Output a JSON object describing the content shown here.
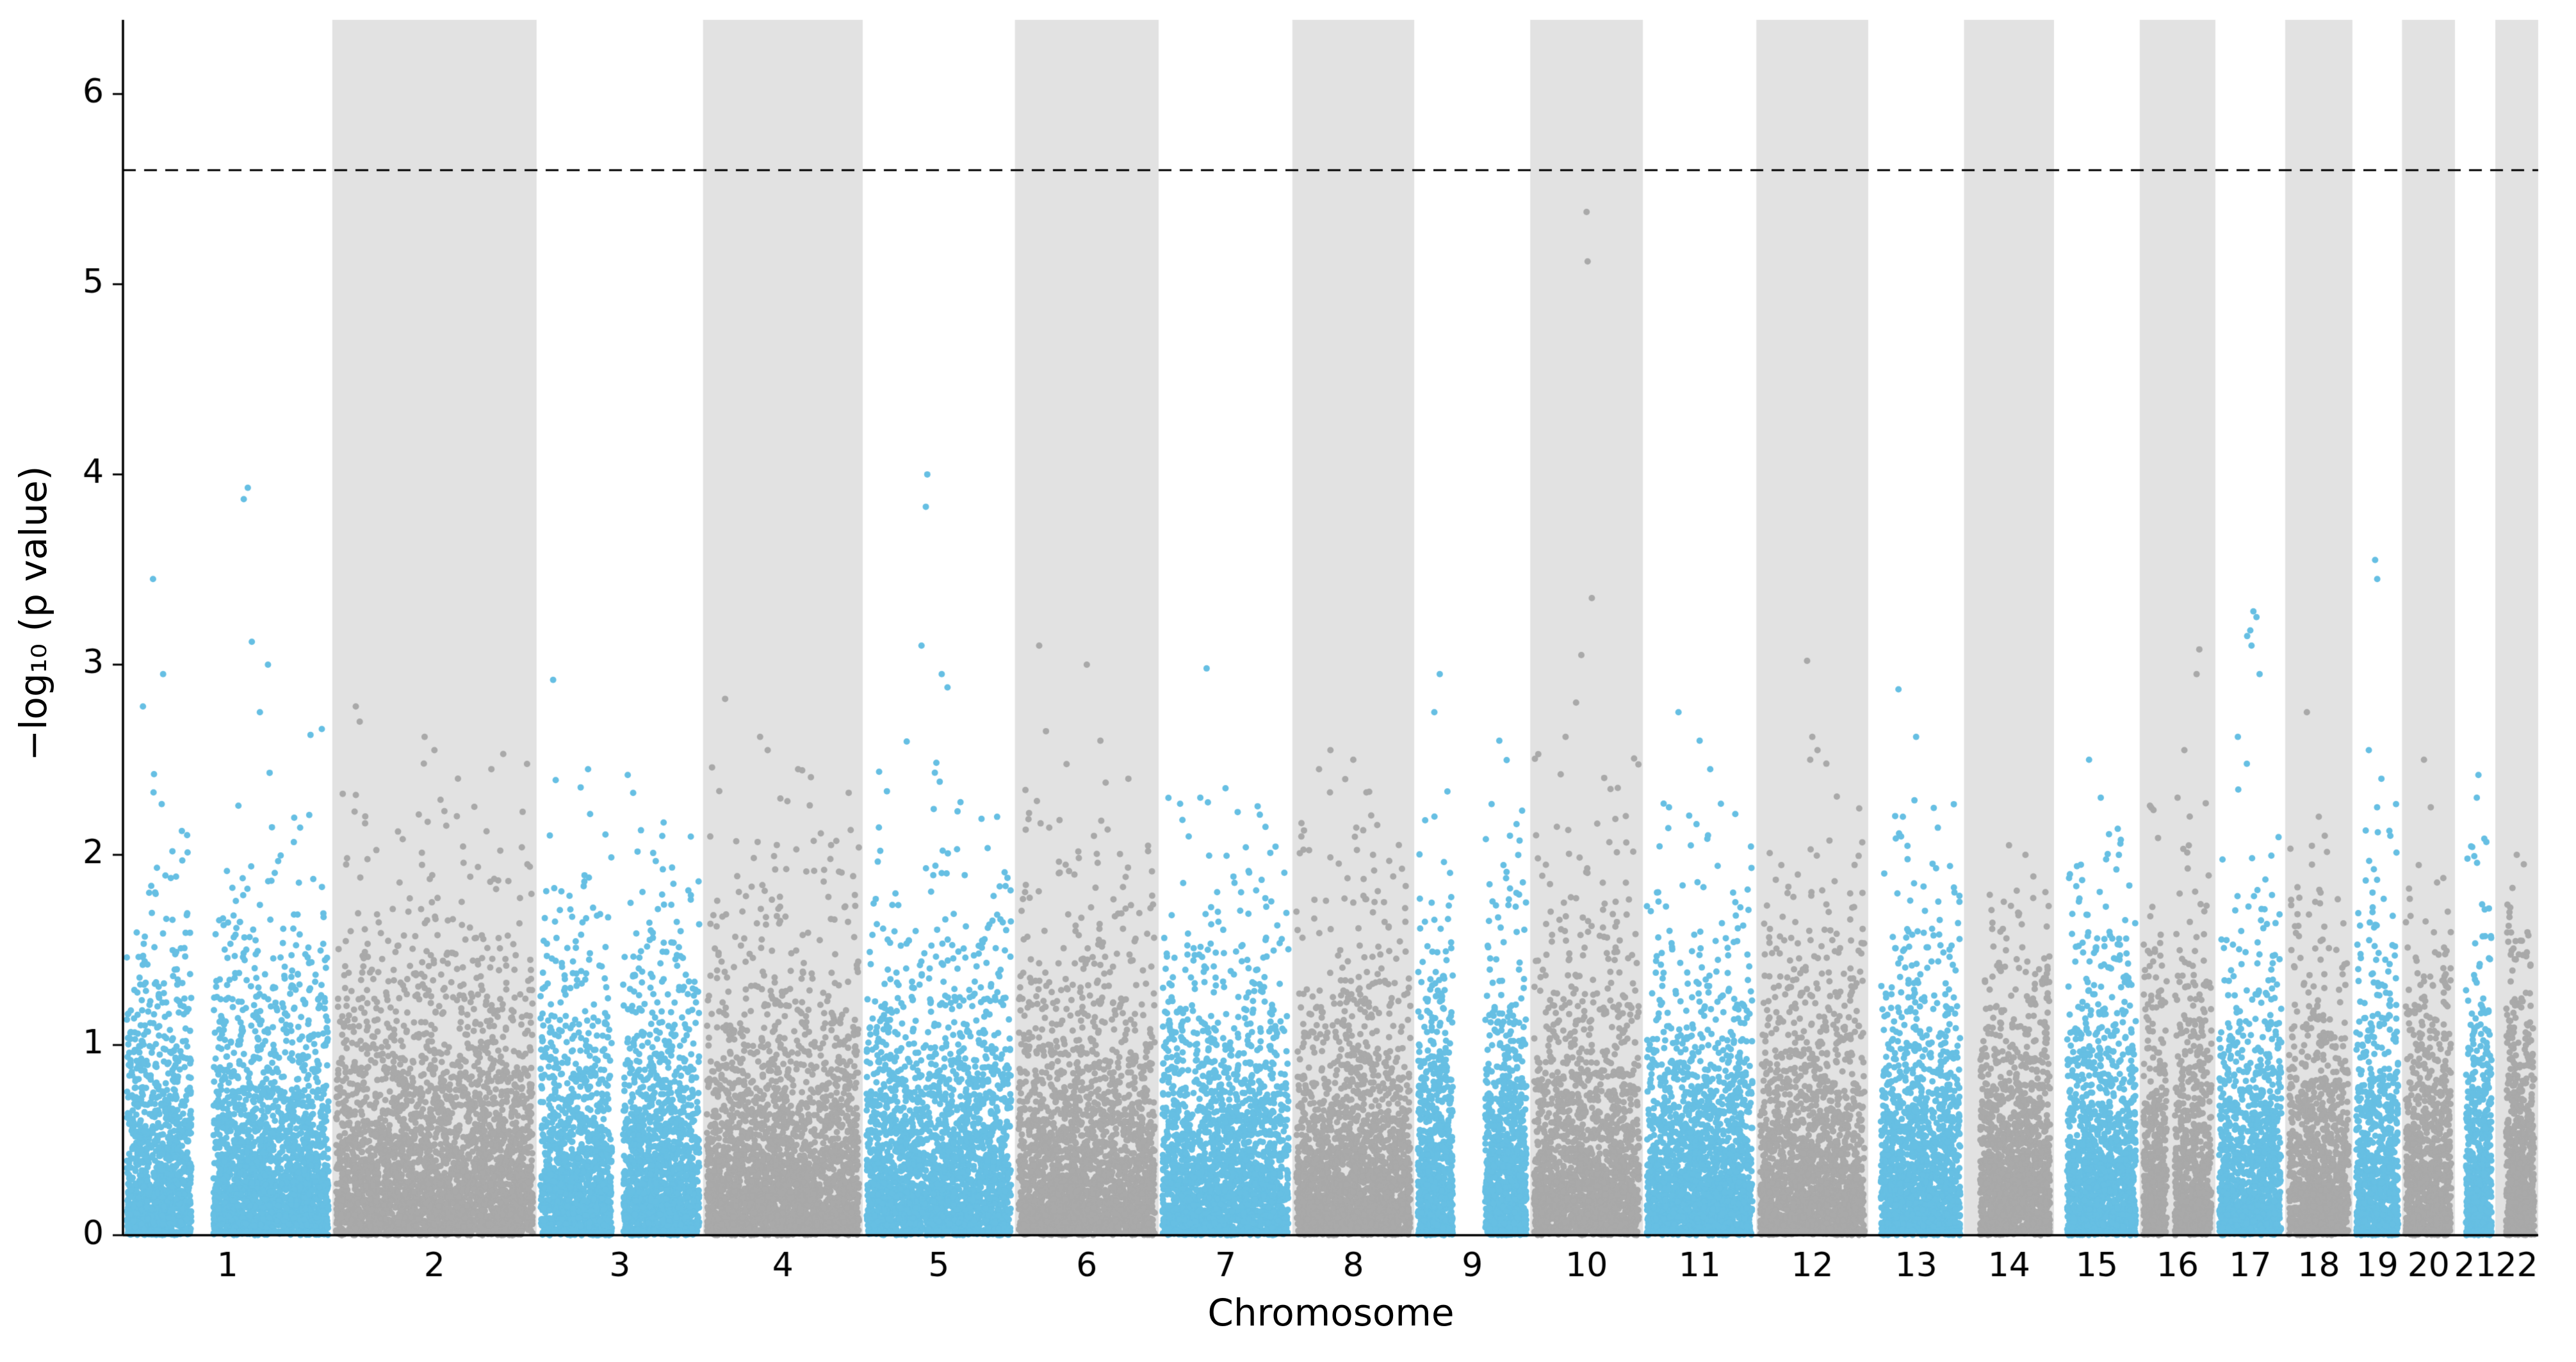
{
  "chart_data": {
    "type": "scatter",
    "subtype": "manhattan",
    "title": "",
    "xlabel": "Chromosome",
    "ylabel": "−log₁₀ (p value)",
    "ylim": [
      0,
      6.39
    ],
    "yticks": [
      0,
      1,
      2,
      3,
      4,
      5,
      6
    ],
    "grid": false,
    "legend": "none",
    "threshold_line": {
      "y": 5.6,
      "style": "dashed",
      "color": "#000000"
    },
    "colors": {
      "odd": "#66BFE3",
      "even": "#A9A9A9",
      "band": "#E2E2E2",
      "axis": "#000000"
    },
    "points_per_mb": 13.5,
    "chromosomes": [
      {
        "label": "1",
        "length_mb": 249,
        "cap": 2.7,
        "gaps": [
          [
            0.32,
            0.43
          ]
        ],
        "peaks": [
          [
            0.6,
            3.93
          ],
          [
            0.58,
            3.87
          ],
          [
            0.13,
            3.45
          ],
          [
            0.62,
            3.12
          ],
          [
            0.7,
            3.0
          ],
          [
            0.18,
            2.95
          ],
          [
            0.08,
            2.78
          ],
          [
            0.66,
            2.75
          ]
        ]
      },
      {
        "label": "2",
        "length_mb": 243,
        "cap": 2.5,
        "gaps": [],
        "peaks": [
          [
            0.1,
            2.78
          ],
          [
            0.12,
            2.7
          ],
          [
            0.45,
            2.62
          ],
          [
            0.5,
            2.55
          ],
          [
            0.85,
            2.53
          ]
        ]
      },
      {
        "label": "3",
        "length_mb": 198,
        "cap": 2.4,
        "gaps": [
          [
            0.45,
            0.52
          ]
        ],
        "peaks": [
          [
            0.08,
            2.92
          ],
          [
            0.3,
            2.45
          ],
          [
            0.55,
            2.42
          ]
        ]
      },
      {
        "label": "4",
        "length_mb": 190,
        "cap": 2.5,
        "gaps": [],
        "peaks": [
          [
            0.12,
            2.82
          ],
          [
            0.35,
            2.62
          ],
          [
            0.4,
            2.55
          ],
          [
            0.6,
            2.45
          ]
        ]
      },
      {
        "label": "5",
        "length_mb": 181,
        "cap": 2.8,
        "gaps": [],
        "peaks": [
          [
            0.42,
            4.0
          ],
          [
            0.41,
            3.83
          ],
          [
            0.38,
            3.1
          ],
          [
            0.52,
            2.95
          ],
          [
            0.56,
            2.88
          ]
        ]
      },
      {
        "label": "6",
        "length_mb": 171,
        "cap": 2.6,
        "gaps": [],
        "peaks": [
          [
            0.15,
            3.1
          ],
          [
            0.5,
            3.0
          ],
          [
            0.2,
            2.65
          ],
          [
            0.6,
            2.6
          ]
        ]
      },
      {
        "label": "7",
        "length_mb": 159,
        "cap": 2.3,
        "gaps": [],
        "peaks": [
          [
            0.35,
            2.98
          ],
          [
            0.5,
            2.35
          ],
          [
            0.3,
            2.3
          ]
        ]
      },
      {
        "label": "8",
        "length_mb": 145,
        "cap": 2.4,
        "gaps": [],
        "peaks": [
          [
            0.3,
            2.55
          ],
          [
            0.5,
            2.5
          ],
          [
            0.2,
            2.45
          ]
        ]
      },
      {
        "label": "9",
        "length_mb": 138,
        "cap": 2.5,
        "gaps": [
          [
            0.32,
            0.62
          ]
        ],
        "peaks": [
          [
            0.2,
            2.95
          ],
          [
            0.15,
            2.75
          ],
          [
            0.75,
            2.6
          ]
        ]
      },
      {
        "label": "10",
        "length_mb": 134,
        "cap": 2.6,
        "gaps": [],
        "peaks": [
          [
            0.5,
            5.38
          ],
          [
            0.51,
            5.12
          ],
          [
            0.55,
            3.35
          ],
          [
            0.45,
            3.05
          ],
          [
            0.4,
            2.8
          ],
          [
            0.3,
            2.62
          ]
        ]
      },
      {
        "label": "11",
        "length_mb": 135,
        "cap": 2.4,
        "gaps": [],
        "peaks": [
          [
            0.3,
            2.75
          ],
          [
            0.5,
            2.6
          ],
          [
            0.6,
            2.45
          ]
        ]
      },
      {
        "label": "12",
        "length_mb": 133,
        "cap": 2.5,
        "gaps": [],
        "peaks": [
          [
            0.45,
            3.02
          ],
          [
            0.5,
            2.62
          ],
          [
            0.55,
            2.55
          ],
          [
            0.48,
            2.5
          ]
        ]
      },
      {
        "label": "13",
        "length_mb": 114,
        "cap": 2.3,
        "gaps": [
          [
            0.0,
            0.1
          ]
        ],
        "peaks": [
          [
            0.3,
            2.87
          ],
          [
            0.5,
            2.62
          ],
          [
            0.35,
            2.2
          ]
        ]
      },
      {
        "label": "14",
        "length_mb": 107,
        "cap": 1.9,
        "gaps": [
          [
            0.0,
            0.15
          ]
        ],
        "peaks": [
          [
            0.5,
            2.05
          ],
          [
            0.7,
            2.0
          ]
        ]
      },
      {
        "label": "15",
        "length_mb": 102,
        "cap": 2.2,
        "gaps": [
          [
            0.0,
            0.12
          ]
        ],
        "peaks": [
          [
            0.4,
            2.5
          ],
          [
            0.55,
            2.3
          ]
        ]
      },
      {
        "label": "16",
        "length_mb": 90,
        "cap": 2.3,
        "gaps": [
          [
            0.34,
            0.46
          ]
        ],
        "peaks": [
          [
            0.82,
            3.08
          ],
          [
            0.78,
            2.95
          ],
          [
            0.6,
            2.55
          ],
          [
            0.5,
            2.3
          ]
        ]
      },
      {
        "label": "17",
        "length_mb": 83,
        "cap": 2.6,
        "gaps": [],
        "peaks": [
          [
            0.55,
            3.28
          ],
          [
            0.6,
            3.25
          ],
          [
            0.5,
            3.18
          ],
          [
            0.45,
            3.15
          ],
          [
            0.52,
            3.1
          ],
          [
            0.65,
            2.95
          ],
          [
            0.3,
            2.62
          ]
        ]
      },
      {
        "label": "18",
        "length_mb": 80,
        "cap": 2.1,
        "gaps": [],
        "peaks": [
          [
            0.3,
            2.75
          ],
          [
            0.5,
            2.2
          ],
          [
            0.6,
            2.1
          ]
        ]
      },
      {
        "label": "19",
        "length_mb": 59,
        "cap": 2.5,
        "gaps": [],
        "peaks": [
          [
            0.45,
            3.55
          ],
          [
            0.5,
            3.45
          ],
          [
            0.3,
            2.55
          ],
          [
            0.6,
            2.4
          ]
        ]
      },
      {
        "label": "20",
        "length_mb": 63,
        "cap": 2.2,
        "gaps": [],
        "peaks": [
          [
            0.4,
            2.5
          ],
          [
            0.55,
            2.25
          ]
        ]
      },
      {
        "label": "21",
        "length_mb": 48,
        "cap": 2.2,
        "gaps": [
          [
            0.0,
            0.22
          ]
        ],
        "peaks": [
          [
            0.6,
            2.42
          ],
          [
            0.55,
            2.3
          ]
        ]
      },
      {
        "label": "22",
        "length_mb": 51,
        "cap": 1.9,
        "gaps": [
          [
            0.0,
            0.2
          ]
        ],
        "peaks": [
          [
            0.5,
            2.0
          ],
          [
            0.7,
            1.95
          ]
        ]
      }
    ]
  }
}
